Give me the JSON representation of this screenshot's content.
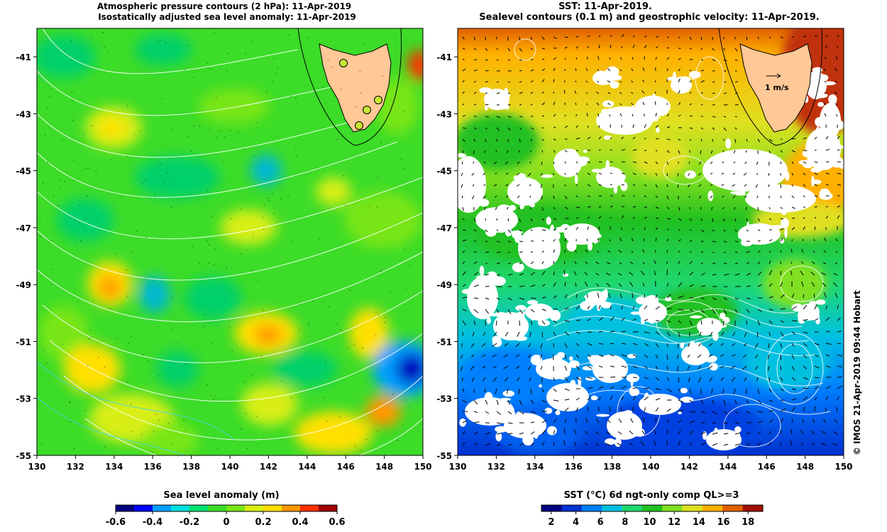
{
  "left_panel": {
    "title_line1": "Atmospheric pressure contours (2 hPa): 11-Apr-2019",
    "title_line2": "Isostatically adjusted sea level anomaly: 11-Apr-2019",
    "colorbar_label": "Sea level anomaly (m)",
    "colorbar_ticks": [
      "-0.6",
      "-0.4",
      "-0.2",
      "0",
      "0.2",
      "0.4",
      "0.6"
    ],
    "colorbar_range": [
      -0.6,
      0.6
    ],
    "colormap": [
      "#000080",
      "#0000ff",
      "#00a0ff",
      "#00e0e0",
      "#00e070",
      "#3cdc28",
      "#78e614",
      "#d8ee14",
      "#ffe000",
      "#ff9800",
      "#ff3000",
      "#a00000"
    ],
    "land_color": "#ffc896",
    "tide_gauge_color": "#c8e632"
  },
  "right_panel": {
    "title_line1": "SST: 11-Apr-2019.",
    "title_line2": "Sealevel contours (0.1 m) and geostrophic velocity: 11-Apr-2019.",
    "velocity_scale_label": "1 m/s",
    "colorbar_label": "SST (°C) 6d ngt-only comp QL>=3",
    "colorbar_ticks": [
      "2",
      "4",
      "6",
      "8",
      "10",
      "12",
      "14",
      "16",
      "18"
    ],
    "colorbar_range": [
      1.2,
      19.2
    ],
    "colormap": [
      "#000080",
      "#0030d0",
      "#0080ff",
      "#00c0e0",
      "#20d870",
      "#20c020",
      "#80e020",
      "#e0e020",
      "#ffb000",
      "#e06000",
      "#a01000"
    ],
    "land_color": "#ffc896"
  },
  "axes": {
    "x_ticks": [
      "130",
      "132",
      "134",
      "136",
      "138",
      "140",
      "142",
      "144",
      "146",
      "148",
      "150"
    ],
    "y_ticks": [
      "-41",
      "-43",
      "-45",
      "-47",
      "-49",
      "-51",
      "-53",
      "-55"
    ],
    "lon_range": [
      130,
      150
    ],
    "lat_range": [
      -55,
      -40
    ]
  },
  "credit": "© IMOS 21-Apr-2019 09:44 Hobart"
}
